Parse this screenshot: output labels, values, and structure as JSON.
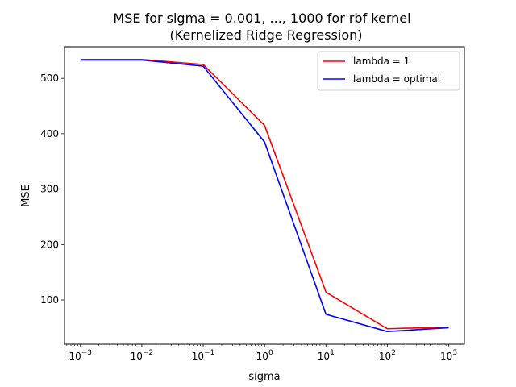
{
  "chart_data": {
    "type": "line",
    "title": "MSE for sigma = 0.001, ..., 1000 for rbf kernel",
    "subtitle": "(Kernelized Ridge Regression)",
    "xlabel": "sigma",
    "ylabel": "MSE",
    "xscale": "log",
    "x": [
      0.001,
      0.01,
      0.1,
      1,
      10,
      100,
      1000
    ],
    "xlim": [
      0.00055,
      1800
    ],
    "ylim": [
      20,
      557
    ],
    "yticks": [
      100,
      200,
      300,
      400,
      500
    ],
    "xticks": [
      {
        "base": "10",
        "exp": "−3",
        "value": 0.001
      },
      {
        "base": "10",
        "exp": "−2",
        "value": 0.01
      },
      {
        "base": "10",
        "exp": "−1",
        "value": 0.1
      },
      {
        "base": "10",
        "exp": "0",
        "value": 1
      },
      {
        "base": "10",
        "exp": "1",
        "value": 10
      },
      {
        "base": "10",
        "exp": "2",
        "value": 100
      },
      {
        "base": "10",
        "exp": "3",
        "value": 1000
      }
    ],
    "series": [
      {
        "name": "lambda = 1",
        "color": "#ff0000",
        "values": [
          534,
          534,
          525,
          415,
          114,
          48,
          51
        ]
      },
      {
        "name": "lambda = optimal",
        "color": "#0000ff",
        "values": [
          533,
          533,
          522,
          385,
          74,
          43,
          50
        ]
      }
    ],
    "grid": false,
    "legend": "top-right"
  }
}
